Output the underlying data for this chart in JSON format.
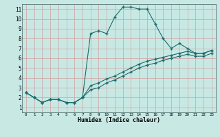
{
  "xlabel": "Humidex (Indice chaleur)",
  "bg_color": "#c8e8e4",
  "grid_color": "#d4a0a0",
  "line_color": "#1a6b6b",
  "xlim": [
    -0.5,
    23.5
  ],
  "ylim": [
    0.5,
    11.5
  ],
  "xticks": [
    0,
    1,
    2,
    3,
    4,
    5,
    6,
    7,
    8,
    9,
    10,
    11,
    12,
    13,
    14,
    15,
    16,
    17,
    18,
    19,
    20,
    21,
    22,
    23
  ],
  "yticks": [
    1,
    2,
    3,
    4,
    5,
    6,
    7,
    8,
    9,
    10,
    11
  ],
  "line1_x": [
    0,
    1,
    2,
    3,
    4,
    5,
    6,
    7,
    8,
    9,
    10,
    11,
    12,
    13,
    14,
    15,
    16,
    17,
    18,
    19,
    20,
    21,
    22,
    23
  ],
  "line1_y": [
    2.5,
    2.0,
    1.5,
    1.8,
    1.8,
    1.5,
    1.5,
    2.0,
    8.5,
    8.8,
    8.5,
    10.2,
    11.2,
    11.2,
    11.0,
    11.0,
    9.5,
    8.0,
    7.0,
    7.5,
    7.0,
    6.5,
    6.5,
    6.8
  ],
  "line2_x": [
    0,
    1,
    2,
    3,
    4,
    5,
    6,
    7,
    8,
    9,
    10,
    11,
    12,
    13,
    14,
    15,
    16,
    17,
    18,
    19,
    20,
    21,
    22,
    23
  ],
  "line2_y": [
    2.5,
    2.0,
    1.5,
    1.8,
    1.8,
    1.5,
    1.5,
    2.0,
    3.2,
    3.5,
    3.9,
    4.2,
    4.6,
    5.0,
    5.4,
    5.7,
    5.9,
    6.1,
    6.3,
    6.5,
    6.7,
    6.5,
    6.5,
    6.8
  ],
  "line3_x": [
    0,
    1,
    2,
    3,
    4,
    5,
    6,
    7,
    8,
    9,
    10,
    11,
    12,
    13,
    14,
    15,
    16,
    17,
    18,
    19,
    20,
    21,
    22,
    23
  ],
  "line3_y": [
    2.5,
    2.0,
    1.5,
    1.8,
    1.8,
    1.5,
    1.5,
    2.0,
    2.8,
    3.0,
    3.5,
    3.8,
    4.2,
    4.6,
    5.0,
    5.3,
    5.5,
    5.8,
    6.0,
    6.2,
    6.4,
    6.2,
    6.2,
    6.5
  ]
}
